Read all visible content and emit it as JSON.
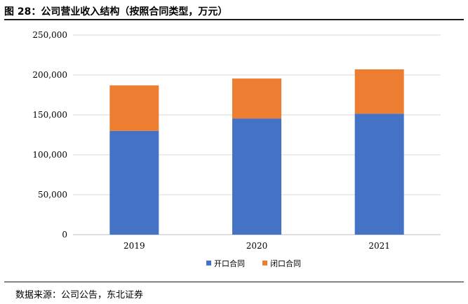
{
  "figure": {
    "title": "图 28：公司营业收入结构（按照合同类型，万元）",
    "source": "数据来源：公司公告，东北证券"
  },
  "chart_data": {
    "type": "bar",
    "stacked": true,
    "title": "图 28：公司营业收入结构（按照合同类型，万元）",
    "xlabel": "",
    "ylabel": "",
    "categories": [
      "2019",
      "2020",
      "2021"
    ],
    "series": [
      {
        "name": "开口合同",
        "values": [
          130000,
          145500,
          151500
        ],
        "color": "#4472C4"
      },
      {
        "name": "闭口合同",
        "values": [
          57000,
          50000,
          55500
        ],
        "color": "#ED7D31"
      }
    ],
    "ylim": [
      0,
      250000
    ],
    "yticks": [
      0,
      50000,
      100000,
      150000,
      200000,
      250000
    ],
    "ytick_labels": [
      "0",
      "50,000",
      "100,000",
      "150,000",
      "200,000",
      "250,000"
    ],
    "grid": true,
    "legend_position": "bottom"
  }
}
